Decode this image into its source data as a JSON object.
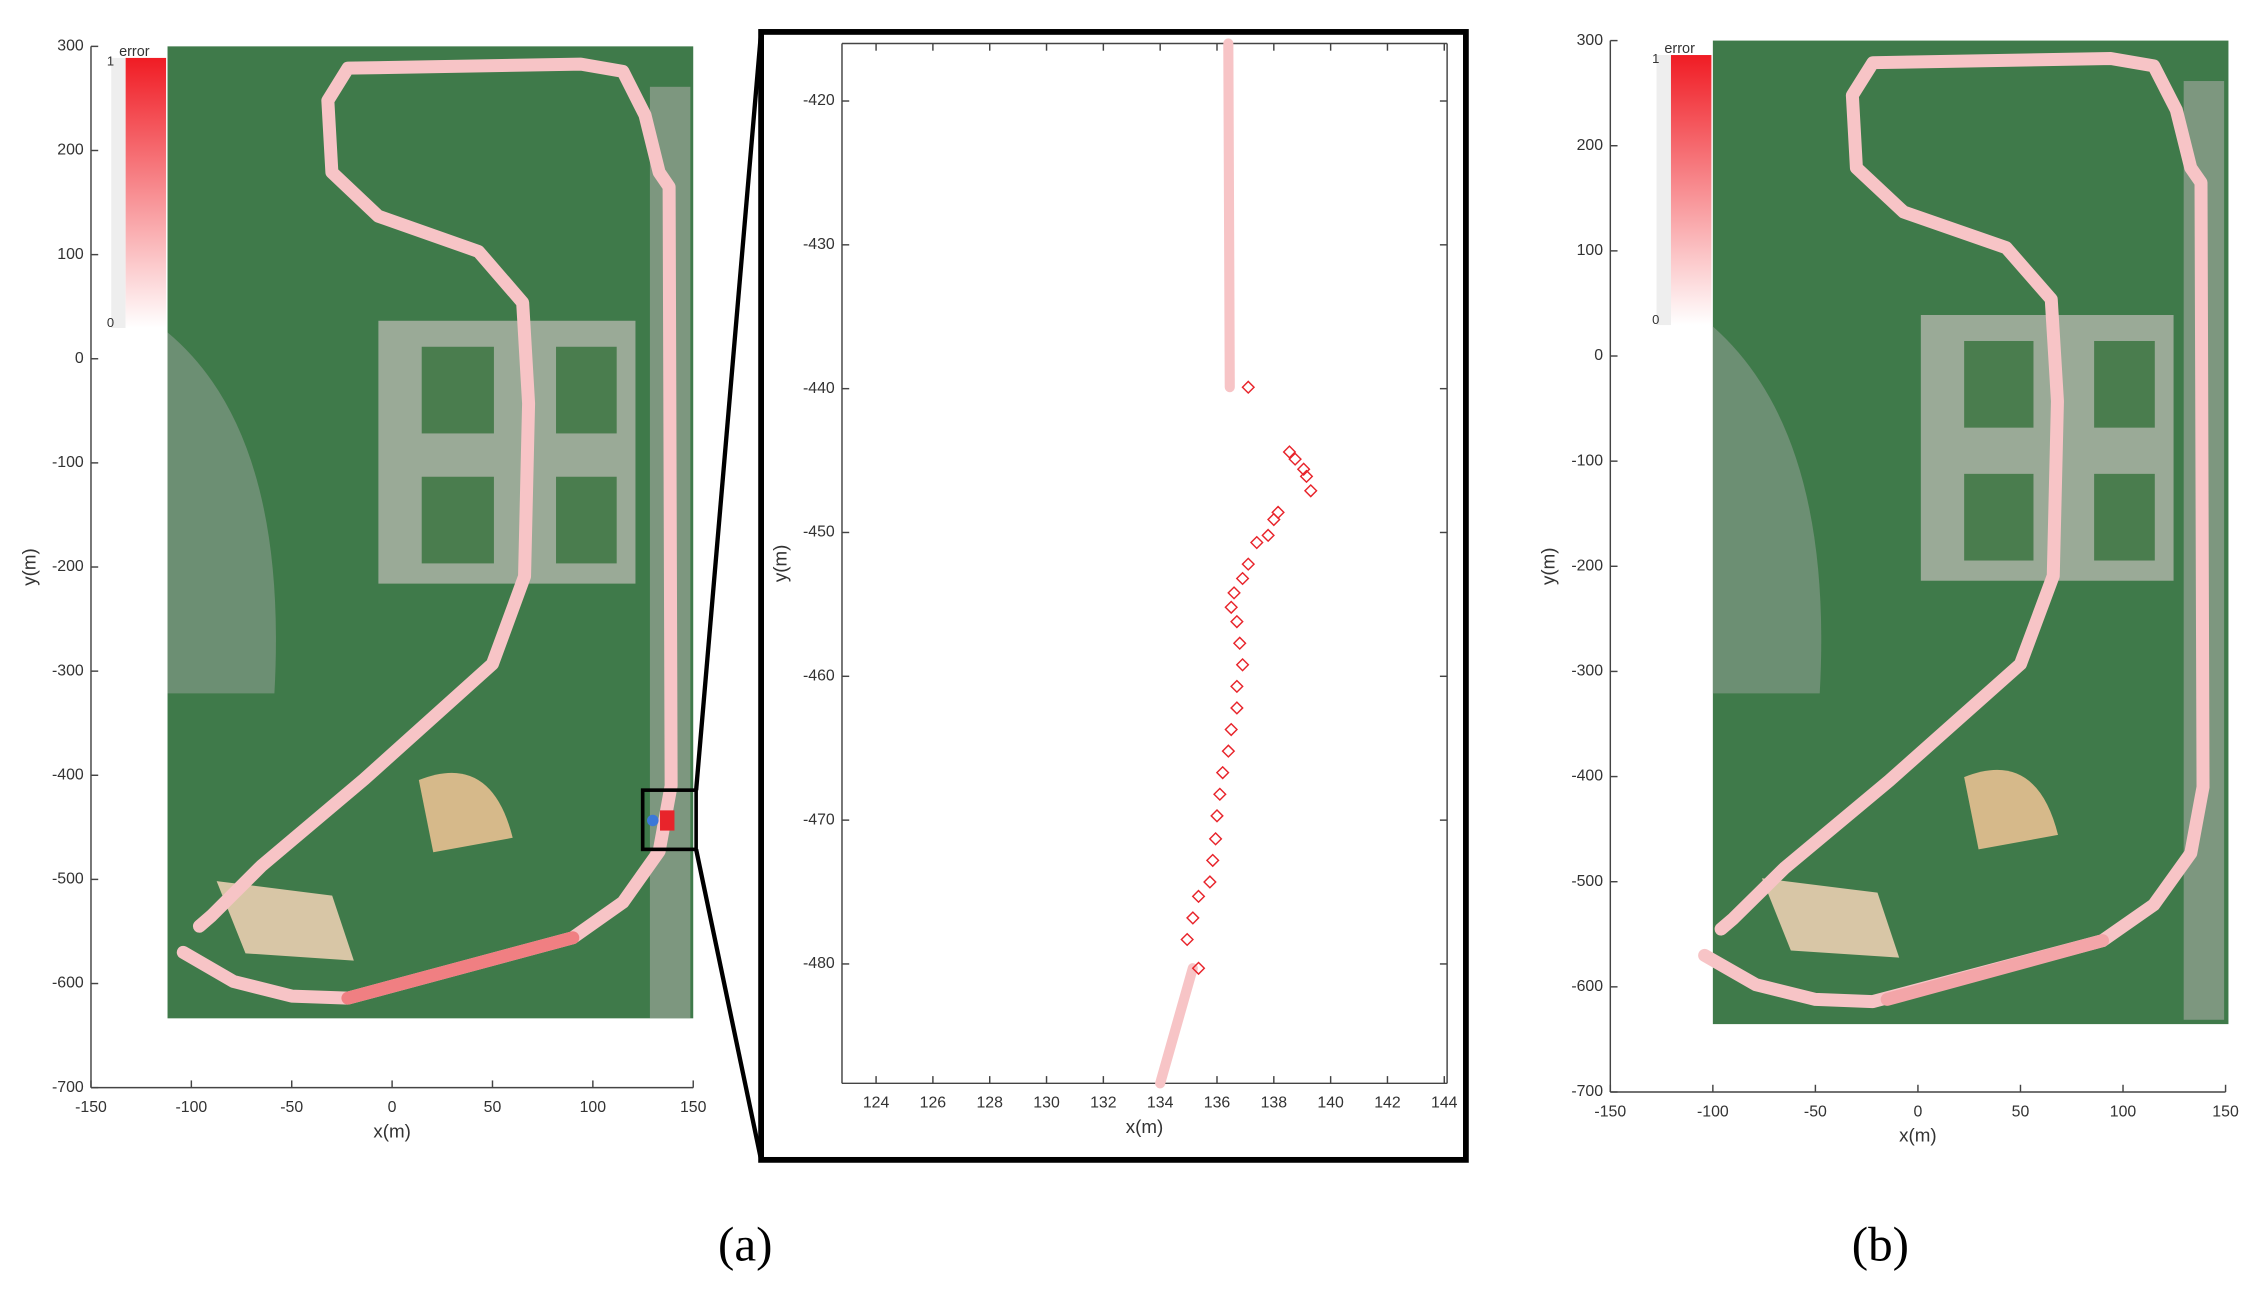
{
  "chart_data": [
    {
      "type": "line",
      "xlabel": "x(m)",
      "ylabel": "y(m)",
      "xlim": [
        -150,
        150
      ],
      "ylim": [
        -700,
        300
      ],
      "xticks": [
        -150,
        -100,
        -50,
        0,
        50,
        100,
        150
      ],
      "yticks": [
        300,
        200,
        100,
        0,
        -100,
        -200,
        -300,
        -400,
        -500,
        -600,
        -700
      ],
      "colorbar": {
        "label": "error",
        "ticks": [
          0,
          1
        ]
      },
      "series": [
        {
          "color": "#f7c4c6",
          "x": [
            -104,
            -79,
            -50,
            -22,
            90,
            115,
            133,
            139,
            138,
            133,
            126,
            115,
            94,
            -22,
            -32,
            -30,
            -7,
            43,
            65,
            68,
            66,
            50,
            -14,
            -65,
            -90,
            -96
          ],
          "values": [
            -570,
            -598,
            -612,
            -614,
            -556,
            -522,
            -473,
            -410,
            165,
            179,
            234,
            276,
            283,
            279,
            248,
            179,
            137,
            103,
            54,
            -43,
            -209,
            -293,
            -404,
            -487,
            -535,
            -545
          ]
        },
        {
          "color": "#f07f82",
          "x": [
            -22,
            90
          ],
          "values": [
            -614,
            -556
          ]
        }
      ]
    },
    {
      "type": "scatter",
      "xlabel": "x(m)",
      "ylabel": "y(m)",
      "xlim": [
        122.8,
        144.1
      ],
      "ylim": [
        -488.3,
        -416
      ],
      "xticks": [
        124,
        126,
        128,
        130,
        132,
        134,
        136,
        138,
        140,
        142,
        144
      ],
      "yticks": [
        -420,
        -430,
        -440,
        -450,
        -460,
        -470,
        -480
      ],
      "series": [
        {
          "color": "#f7c4c6",
          "marker": "line",
          "x": [
            136.4,
            136.45,
            null,
            135.15,
            134.0
          ],
          "values": [
            -416,
            -439.9,
            null,
            -480.3,
            -488.3
          ]
        },
        {
          "color": "#e8242b",
          "marker": "diamond",
          "x": [
            137.1,
            138.55,
            138.75,
            139.05,
            139.3,
            139.15,
            138.15,
            138,
            137.8,
            137.4,
            137.1,
            136.9,
            136.6,
            136.5,
            136.7,
            136.8,
            136.9,
            136.7,
            136.7,
            136.5,
            136.4,
            136.2,
            136.1,
            136.0,
            135.95,
            135.85,
            135.75,
            135.35,
            135.15,
            134.95,
            135.35
          ],
          "values": [
            -439.9,
            -444.4,
            -444.9,
            -445.6,
            -447.1,
            -446.1,
            -448.6,
            -449.1,
            -450.2,
            -450.7,
            -452.2,
            -453.2,
            -454.2,
            -455.2,
            -456.2,
            -457.7,
            -459.2,
            -460.7,
            -462.2,
            -463.7,
            -465.2,
            -466.7,
            -468.2,
            -469.7,
            -471.3,
            -472.8,
            -474.3,
            -475.3,
            -476.8,
            -478.3,
            -480.3
          ]
        }
      ]
    },
    {
      "type": "line",
      "xlabel": "x(m)",
      "ylabel": "y(m)",
      "xlim": [
        -150,
        150
      ],
      "ylim": [
        -700,
        300
      ],
      "xticks": [
        -150,
        -100,
        -50,
        0,
        50,
        100,
        150
      ],
      "yticks": [
        300,
        200,
        100,
        0,
        -100,
        -200,
        -300,
        -400,
        -500,
        -600,
        -700
      ],
      "colorbar": {
        "label": "error",
        "ticks": [
          0,
          1
        ]
      },
      "series": [
        {
          "color": "#f7c4c6",
          "x": [
            -104,
            -79,
            -50,
            -22,
            90,
            115,
            133,
            139,
            138,
            133,
            126,
            115,
            94,
            -22,
            -32,
            -30,
            -7,
            43,
            65,
            68,
            66,
            50,
            -14,
            -65,
            -90,
            -96
          ],
          "values": [
            -570,
            -598,
            -612,
            -614,
            -556,
            -522,
            -473,
            -410,
            165,
            179,
            234,
            276,
            283,
            279,
            248,
            179,
            137,
            103,
            54,
            -43,
            -209,
            -293,
            -404,
            -487,
            -535,
            -545
          ]
        },
        {
          "color": "#f3a5a8",
          "x": [
            -15,
            90
          ],
          "values": [
            -612,
            -556
          ]
        }
      ]
    }
  ],
  "panel_labels": [
    "(a)",
    "(b)"
  ]
}
